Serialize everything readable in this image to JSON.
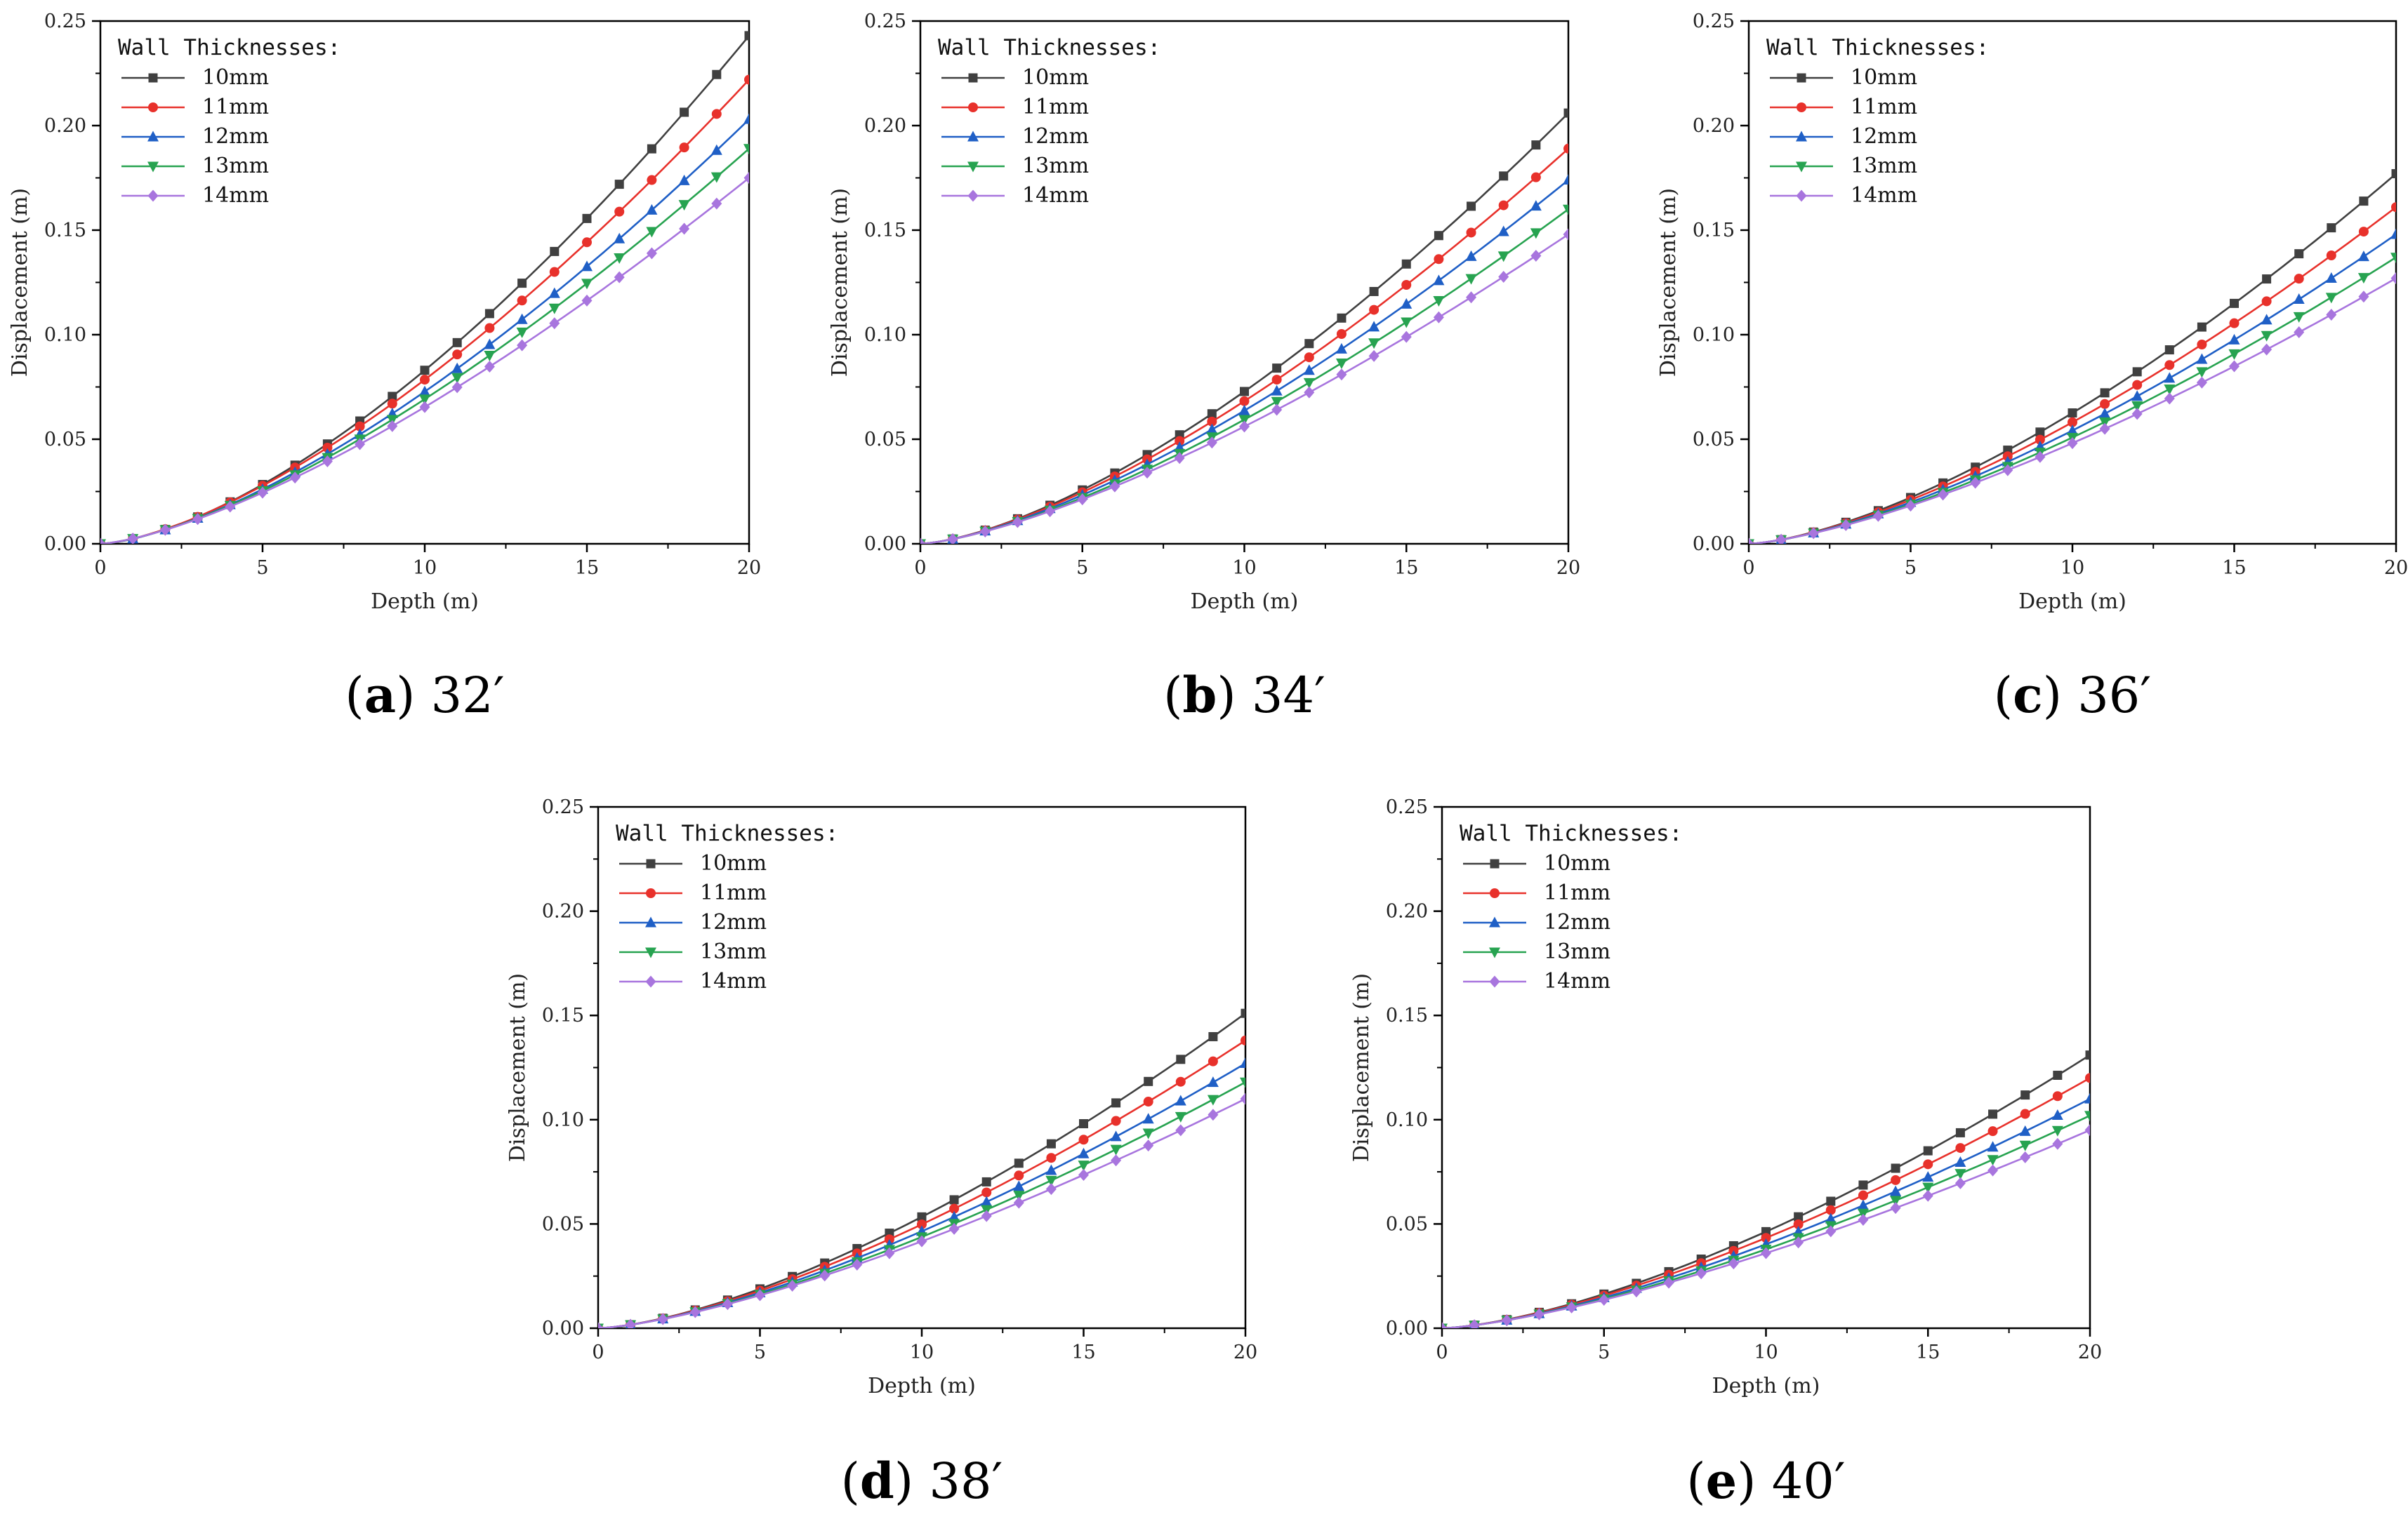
{
  "chart_data": [
    {
      "type": "line",
      "caption": {
        "letter": "a",
        "angle": "32′"
      },
      "xlabel": "Depth (m)",
      "ylabel": "Displacement (m)",
      "xlim": [
        0,
        20
      ],
      "ylim": [
        0,
        0.25
      ],
      "xticks": [
        "0",
        "5",
        "10",
        "15",
        "20"
      ],
      "yticks": [
        "0.00",
        "0.05",
        "0.10",
        "0.15",
        "0.20",
        "0.25"
      ],
      "legend": {
        "title": "Wall Thicknesses:",
        "placement": "top-left"
      },
      "series": [
        {
          "name": "10mm",
          "color": "#404040",
          "marker": "square",
          "end": 0.243,
          "exp": 1.55
        },
        {
          "name": "11mm",
          "color": "#e8312b",
          "marker": "circle",
          "end": 0.222,
          "exp": 1.5
        },
        {
          "name": "12mm",
          "color": "#1f5fc6",
          "marker": "triangle-up",
          "end": 0.203,
          "exp": 1.48
        },
        {
          "name": "13mm",
          "color": "#27a350",
          "marker": "triangle-down",
          "end": 0.189,
          "exp": 1.45
        },
        {
          "name": "14mm",
          "color": "#a875de",
          "marker": "diamond",
          "end": 0.175,
          "exp": 1.42
        }
      ]
    },
    {
      "type": "line",
      "caption": {
        "letter": "b",
        "angle": "34′"
      },
      "xlabel": "Depth (m)",
      "ylabel": "Displacement (m)",
      "xlim": [
        0,
        20
      ],
      "ylim": [
        0,
        0.25
      ],
      "xticks": [
        "0",
        "5",
        "10",
        "15",
        "20"
      ],
      "yticks": [
        "0.00",
        "0.05",
        "0.10",
        "0.15",
        "0.20",
        "0.25"
      ],
      "legend": {
        "title": "Wall Thicknesses:",
        "placement": "top-left"
      },
      "series": [
        {
          "name": "10mm",
          "color": "#404040",
          "marker": "square",
          "end": 0.206,
          "exp": 1.5
        },
        {
          "name": "11mm",
          "color": "#e8312b",
          "marker": "circle",
          "end": 0.189,
          "exp": 1.47
        },
        {
          "name": "12mm",
          "color": "#1f5fc6",
          "marker": "triangle-up",
          "end": 0.174,
          "exp": 1.45
        },
        {
          "name": "13mm",
          "color": "#27a350",
          "marker": "triangle-down",
          "end": 0.16,
          "exp": 1.43
        },
        {
          "name": "14mm",
          "color": "#a875de",
          "marker": "diamond",
          "end": 0.148,
          "exp": 1.4
        }
      ]
    },
    {
      "type": "line",
      "caption": {
        "letter": "c",
        "angle": "36′"
      },
      "xlabel": "Depth (m)",
      "ylabel": "Displacement (m)",
      "xlim": [
        0,
        20
      ],
      "ylim": [
        0,
        0.25
      ],
      "xticks": [
        "0",
        "5",
        "10",
        "15",
        "20"
      ],
      "yticks": [
        "0.00",
        "0.05",
        "0.10",
        "0.15",
        "0.20",
        "0.25"
      ],
      "legend": {
        "title": "Wall Thicknesses:",
        "placement": "top-left"
      },
      "series": [
        {
          "name": "10mm",
          "color": "#404040",
          "marker": "square",
          "end": 0.177,
          "exp": 1.5
        },
        {
          "name": "11mm",
          "color": "#e8312b",
          "marker": "circle",
          "end": 0.161,
          "exp": 1.47
        },
        {
          "name": "12mm",
          "color": "#1f5fc6",
          "marker": "triangle-up",
          "end": 0.148,
          "exp": 1.45
        },
        {
          "name": "13mm",
          "color": "#27a350",
          "marker": "triangle-down",
          "end": 0.137,
          "exp": 1.43
        },
        {
          "name": "14mm",
          "color": "#a875de",
          "marker": "diamond",
          "end": 0.127,
          "exp": 1.4
        }
      ]
    },
    {
      "type": "line",
      "caption": {
        "letter": "d",
        "angle": "38′"
      },
      "xlabel": "Depth (m)",
      "ylabel": "Displacement (m)",
      "xlim": [
        0,
        20
      ],
      "ylim": [
        0,
        0.25
      ],
      "xticks": [
        "0",
        "5",
        "10",
        "15",
        "20"
      ],
      "yticks": [
        "0.00",
        "0.05",
        "0.10",
        "0.15",
        "0.20",
        "0.25"
      ],
      "legend": {
        "title": "Wall Thicknesses:",
        "placement": "top-left"
      },
      "series": [
        {
          "name": "10mm",
          "color": "#404040",
          "marker": "square",
          "end": 0.151,
          "exp": 1.5
        },
        {
          "name": "11mm",
          "color": "#e8312b",
          "marker": "circle",
          "end": 0.138,
          "exp": 1.47
        },
        {
          "name": "12mm",
          "color": "#1f5fc6",
          "marker": "triangle-up",
          "end": 0.127,
          "exp": 1.45
        },
        {
          "name": "13mm",
          "color": "#27a350",
          "marker": "triangle-down",
          "end": 0.118,
          "exp": 1.43
        },
        {
          "name": "14mm",
          "color": "#a875de",
          "marker": "diamond",
          "end": 0.11,
          "exp": 1.4
        }
      ]
    },
    {
      "type": "line",
      "caption": {
        "letter": "e",
        "angle": "40′"
      },
      "xlabel": "Depth (m)",
      "ylabel": "Displacement (m)",
      "xlim": [
        0,
        20
      ],
      "ylim": [
        0,
        0.25
      ],
      "xticks": [
        "0",
        "5",
        "10",
        "15",
        "20"
      ],
      "yticks": [
        "0.00",
        "0.05",
        "0.10",
        "0.15",
        "0.20",
        "0.25"
      ],
      "legend": {
        "title": "Wall Thicknesses:",
        "placement": "top-left"
      },
      "series": [
        {
          "name": "10mm",
          "color": "#404040",
          "marker": "square",
          "end": 0.131,
          "exp": 1.5
        },
        {
          "name": "11mm",
          "color": "#e8312b",
          "marker": "circle",
          "end": 0.12,
          "exp": 1.47
        },
        {
          "name": "12mm",
          "color": "#1f5fc6",
          "marker": "triangle-up",
          "end": 0.11,
          "exp": 1.45
        },
        {
          "name": "13mm",
          "color": "#27a350",
          "marker": "triangle-down",
          "end": 0.102,
          "exp": 1.43
        },
        {
          "name": "14mm",
          "color": "#a875de",
          "marker": "diamond",
          "end": 0.095,
          "exp": 1.4
        }
      ]
    }
  ]
}
